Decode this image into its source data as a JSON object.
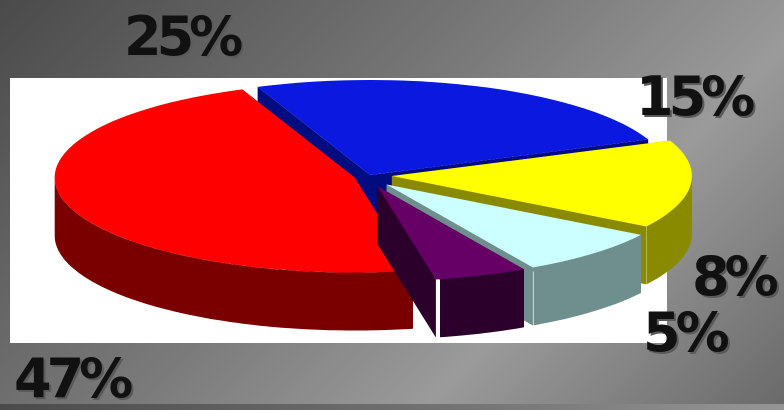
{
  "chart_data": {
    "type": "pie",
    "style": "3d-exploded",
    "slices": [
      {
        "value": 25,
        "label": "25%",
        "color": "#0a18e0",
        "side_color": "#000c80"
      },
      {
        "value": 15,
        "label": "15%",
        "color": "#ffff00",
        "side_color": "#8a8a00"
      },
      {
        "value": 8,
        "label": "8%",
        "color": "#ccffff",
        "side_color": "#6f8f8f"
      },
      {
        "value": 5,
        "label": "5%",
        "color": "#660066",
        "side_color": "#2b002b"
      },
      {
        "value": 47,
        "label": "47%",
        "color": "#ff0000",
        "side_color": "#7a0000"
      }
    ]
  }
}
